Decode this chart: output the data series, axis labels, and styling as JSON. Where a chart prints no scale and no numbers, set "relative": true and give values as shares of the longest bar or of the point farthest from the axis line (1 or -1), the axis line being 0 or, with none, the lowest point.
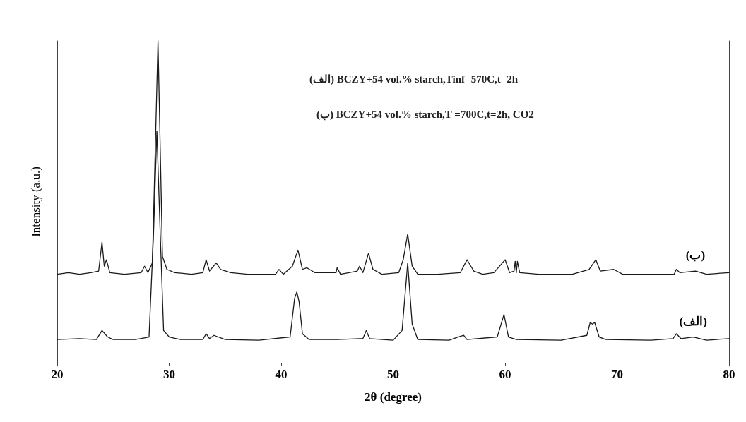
{
  "chart_data": {
    "type": "line",
    "relative": true,
    "xlabel": "2θ (degree)",
    "ylabel": "Intensity (a.u.)",
    "xlim": [
      20,
      80
    ],
    "xticks": [
      20,
      30,
      40,
      50,
      60,
      70,
      80
    ],
    "grid": false,
    "legend": false,
    "marker": "none",
    "line_style": "solid",
    "annotations": [
      "(الف) BCZY+54 vol.% starch,Tinf=570C,t=2h",
      "(ب) BCZY+54 vol.% starch,T =700C,t=2h, CO2"
    ],
    "series": [
      {
        "name": "(ب)",
        "color": "#1a1a1a",
        "x": [
          20,
          21,
          22,
          23,
          23.7,
          24.0,
          24.2,
          24.4,
          24.7,
          26,
          27.5,
          27.8,
          28.1,
          28.5,
          29.0,
          29.4,
          29.8,
          30.5,
          32,
          33.0,
          33.3,
          33.6,
          34.2,
          34.6,
          35.5,
          37,
          39.5,
          39.8,
          40.2,
          41.0,
          41.5,
          41.9,
          42.3,
          43,
          44.9,
          45.0,
          45.3,
          46.8,
          47.0,
          47.3,
          47.8,
          48.2,
          49,
          50.5,
          50.9,
          51.3,
          51.7,
          52.2,
          54,
          56.0,
          56.6,
          57.2,
          58,
          59.0,
          60.0,
          60.4,
          60.8,
          60.9,
          61.0,
          61.1,
          61.3,
          63,
          66,
          67.5,
          68.1,
          68.5,
          69.7,
          70.5,
          73,
          75.1,
          75.3,
          75.6,
          77,
          78,
          80
        ],
        "values": [
          0.275,
          0.28,
          0.275,
          0.28,
          0.285,
          0.375,
          0.3,
          0.32,
          0.28,
          0.275,
          0.28,
          0.3,
          0.28,
          0.31,
          1.0,
          0.33,
          0.29,
          0.28,
          0.275,
          0.28,
          0.32,
          0.285,
          0.31,
          0.29,
          0.28,
          0.275,
          0.275,
          0.29,
          0.275,
          0.3,
          0.35,
          0.29,
          0.295,
          0.28,
          0.28,
          0.295,
          0.275,
          0.285,
          0.3,
          0.28,
          0.34,
          0.29,
          0.275,
          0.28,
          0.32,
          0.4,
          0.3,
          0.275,
          0.275,
          0.28,
          0.32,
          0.285,
          0.275,
          0.28,
          0.32,
          0.28,
          0.285,
          0.315,
          0.28,
          0.315,
          0.28,
          0.275,
          0.275,
          0.29,
          0.32,
          0.285,
          0.29,
          0.275,
          0.275,
          0.275,
          0.29,
          0.28,
          0.285,
          0.275,
          0.28
        ]
      },
      {
        "name": "(الف)",
        "color": "#1a1a1a",
        "x": [
          20,
          22,
          23.5,
          24.0,
          24.5,
          25,
          27,
          28.2,
          28.6,
          28.9,
          29.2,
          29.5,
          30,
          31,
          33.0,
          33.3,
          33.6,
          34.0,
          35,
          38,
          40.8,
          41.2,
          41.4,
          41.6,
          41.9,
          42.5,
          45,
          47.3,
          47.6,
          47.9,
          50,
          50.8,
          51.3,
          51.7,
          52.2,
          55,
          55.8,
          56.3,
          56.6,
          59.3,
          59.9,
          60.3,
          61,
          65,
          67.3,
          67.6,
          67.8,
          68.0,
          68.4,
          69,
          73,
          75.0,
          75.3,
          75.7,
          76.8,
          78,
          80
        ],
        "values": [
          0.072,
          0.075,
          0.072,
          0.1,
          0.08,
          0.072,
          0.072,
          0.08,
          0.4,
          0.72,
          0.4,
          0.1,
          0.08,
          0.072,
          0.072,
          0.09,
          0.075,
          0.085,
          0.072,
          0.07,
          0.08,
          0.2,
          0.22,
          0.19,
          0.09,
          0.072,
          0.072,
          0.075,
          0.1,
          0.075,
          0.07,
          0.1,
          0.31,
          0.12,
          0.072,
          0.07,
          0.08,
          0.085,
          0.072,
          0.08,
          0.15,
          0.08,
          0.072,
          0.07,
          0.085,
          0.125,
          0.12,
          0.125,
          0.08,
          0.072,
          0.07,
          0.075,
          0.09,
          0.075,
          0.08,
          0.07,
          0.075
        ]
      }
    ]
  }
}
